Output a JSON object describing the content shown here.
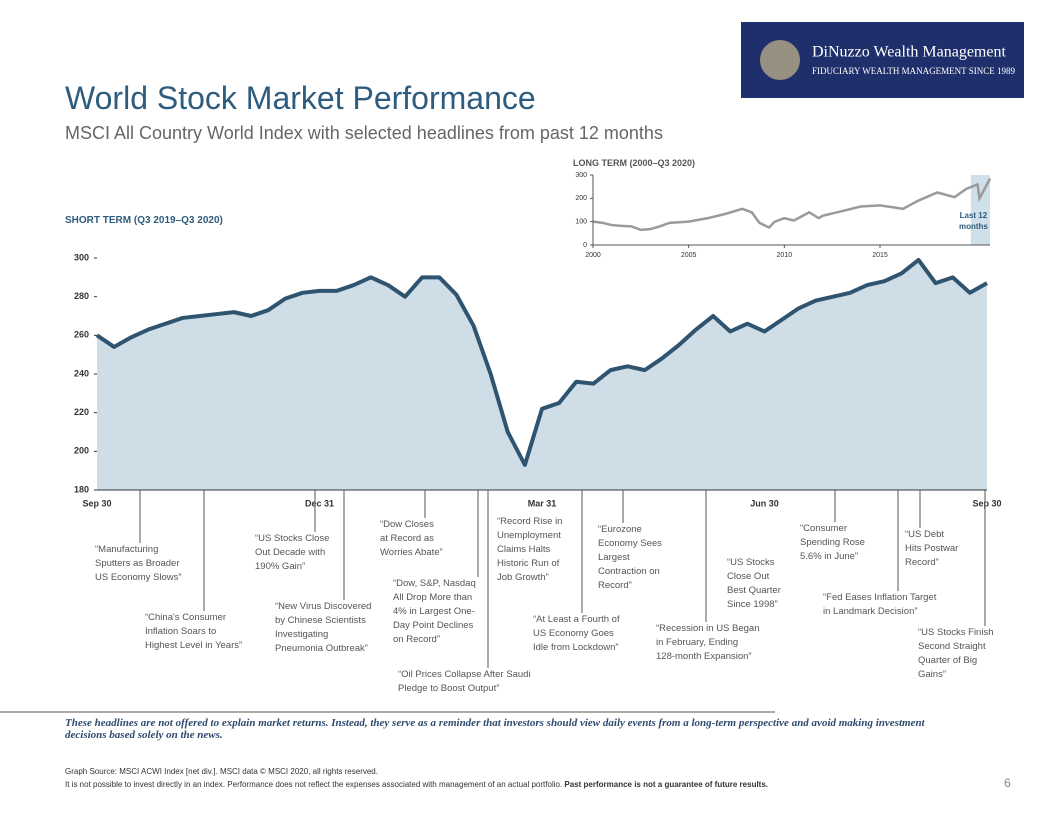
{
  "header": {
    "title": "World Stock Market Performance",
    "subtitle": "MSCI All Country World Index with selected headlines from past 12 months"
  },
  "logo": {
    "name": "DiNuzzo Wealth Management",
    "tagline": "FIDUCIARY WEALTH MANAGEMENT SINCE 1989"
  },
  "chart_data": [
    {
      "type": "area",
      "title": "SHORT TERM (Q3 2019–Q3 2020)",
      "color": "#2f5470",
      "fill": "#cfdde6",
      "categories": [
        "Sep 30",
        null,
        null,
        null,
        null,
        null,
        null,
        null,
        null,
        null,
        null,
        null,
        null,
        "Dec 31",
        null,
        null,
        null,
        null,
        null,
        null,
        null,
        null,
        null,
        null,
        null,
        null,
        "Mar 31",
        null,
        null,
        null,
        null,
        null,
        null,
        null,
        null,
        null,
        null,
        null,
        null,
        "Jun 30",
        null,
        null,
        null,
        null,
        null,
        null,
        null,
        null,
        null,
        null,
        null,
        null,
        "Sep 30"
      ],
      "values": [
        260,
        254,
        259,
        263,
        266,
        269,
        270,
        271,
        272,
        270,
        273,
        279,
        282,
        283,
        283,
        286,
        290,
        286,
        280,
        290,
        290,
        281,
        265,
        240,
        210,
        193,
        222,
        225,
        236,
        235,
        242,
        244,
        242,
        248,
        255,
        263,
        270,
        262,
        266,
        262,
        268,
        274,
        278,
        280,
        282,
        286,
        288,
        292,
        299,
        287,
        290,
        282,
        287
      ],
      "ylim": [
        180,
        300
      ],
      "yticks": [
        180,
        200,
        220,
        240,
        260,
        280,
        300
      ],
      "annotations": [
        "“Manufacturing\nSputters as Broader\nUS Economy Slows”",
        "“China's Consumer\nInflation Soars to\nHighest Level in Years”",
        "“US Stocks Close\nOut Decade with\n190% Gain”",
        "“New Virus Discovered\nby Chinese Scientists\nInvestigating\nPneumonia Outbreak”",
        "“Dow Closes\nat Record as\nWorries Abate”",
        "“Dow, S&P, Nasdaq\nAll Drop More than\n4% in Largest One-\nDay Point Declines\non Record”",
        "“Oil Prices Collapse After Saudi\nPledge to Boost Output”",
        "“Record Rise in\nUnemployment\nClaims Halts\nHistoric Run of\nJob Growth”",
        "“At Least a Fourth of\nUS Economy Goes\nIdle from Lockdown”",
        "“Eurozone\nEconomy Sees\nLargest\nContraction on\nRecord”",
        "“Recession in US Began\nin February, Ending\n128-month Expansion”",
        "“US Stocks\nClose Out\nBest Quarter\nSince 1998”",
        "“Consumer\nSpending Rose\n5.6% in June”",
        "“Fed Eases Inflation Target\nin Landmark Decision”",
        "“US Debt\nHits Postwar\nRecord”",
        "“US Stocks Finish\nSecond Straight\nQuarter of Big\nGains”"
      ]
    },
    {
      "type": "line",
      "title": "LONG TERM (2000–Q3 2020)",
      "color": "#9a9a9a",
      "highlight_color": "#cfe0ea",
      "highlight_label": "Last 12\nmonths",
      "highlight_range": [
        2019.75,
        2020.75
      ],
      "x": [
        2000,
        2000.5,
        2001,
        2001.5,
        2002,
        2002.5,
        2003,
        2003.5,
        2004,
        2005,
        2006,
        2007,
        2007.8,
        2008.3,
        2008.7,
        2009.2,
        2009.5,
        2010,
        2010.5,
        2011.3,
        2011.8,
        2012,
        2013,
        2014,
        2015,
        2015.8,
        2016.2,
        2017,
        2018,
        2018.9,
        2019.5,
        2020.1,
        2020.2,
        2020.5,
        2020.75
      ],
      "values": [
        100,
        95,
        85,
        82,
        80,
        65,
        68,
        80,
        95,
        100,
        115,
        135,
        155,
        140,
        95,
        75,
        100,
        115,
        105,
        140,
        115,
        125,
        145,
        165,
        170,
        160,
        155,
        190,
        225,
        205,
        240,
        260,
        200,
        245,
        285
      ],
      "xlim": [
        2000,
        2020.75
      ],
      "xticks": [
        2000,
        2005,
        2010,
        2015
      ],
      "ylim": [
        0,
        300
      ],
      "yticks": [
        0,
        100,
        200,
        300
      ]
    }
  ],
  "footer": {
    "disclaimer": "These headlines are not offered to explain market returns. Instead, they serve as a reminder that investors should view daily events from a long-term perspective and avoid making investment decisions based solely on the news.",
    "source": "Graph Source: MSCI ACWI Index [net div.]. MSCI data © MSCI 2020, all rights reserved.",
    "note": "It is not possible to invest directly in an index. Performance does not reflect the expenses associated with management of an actual portfolio.",
    "note_bold": "Past performance is not a guarantee of future results.",
    "page": "6"
  }
}
